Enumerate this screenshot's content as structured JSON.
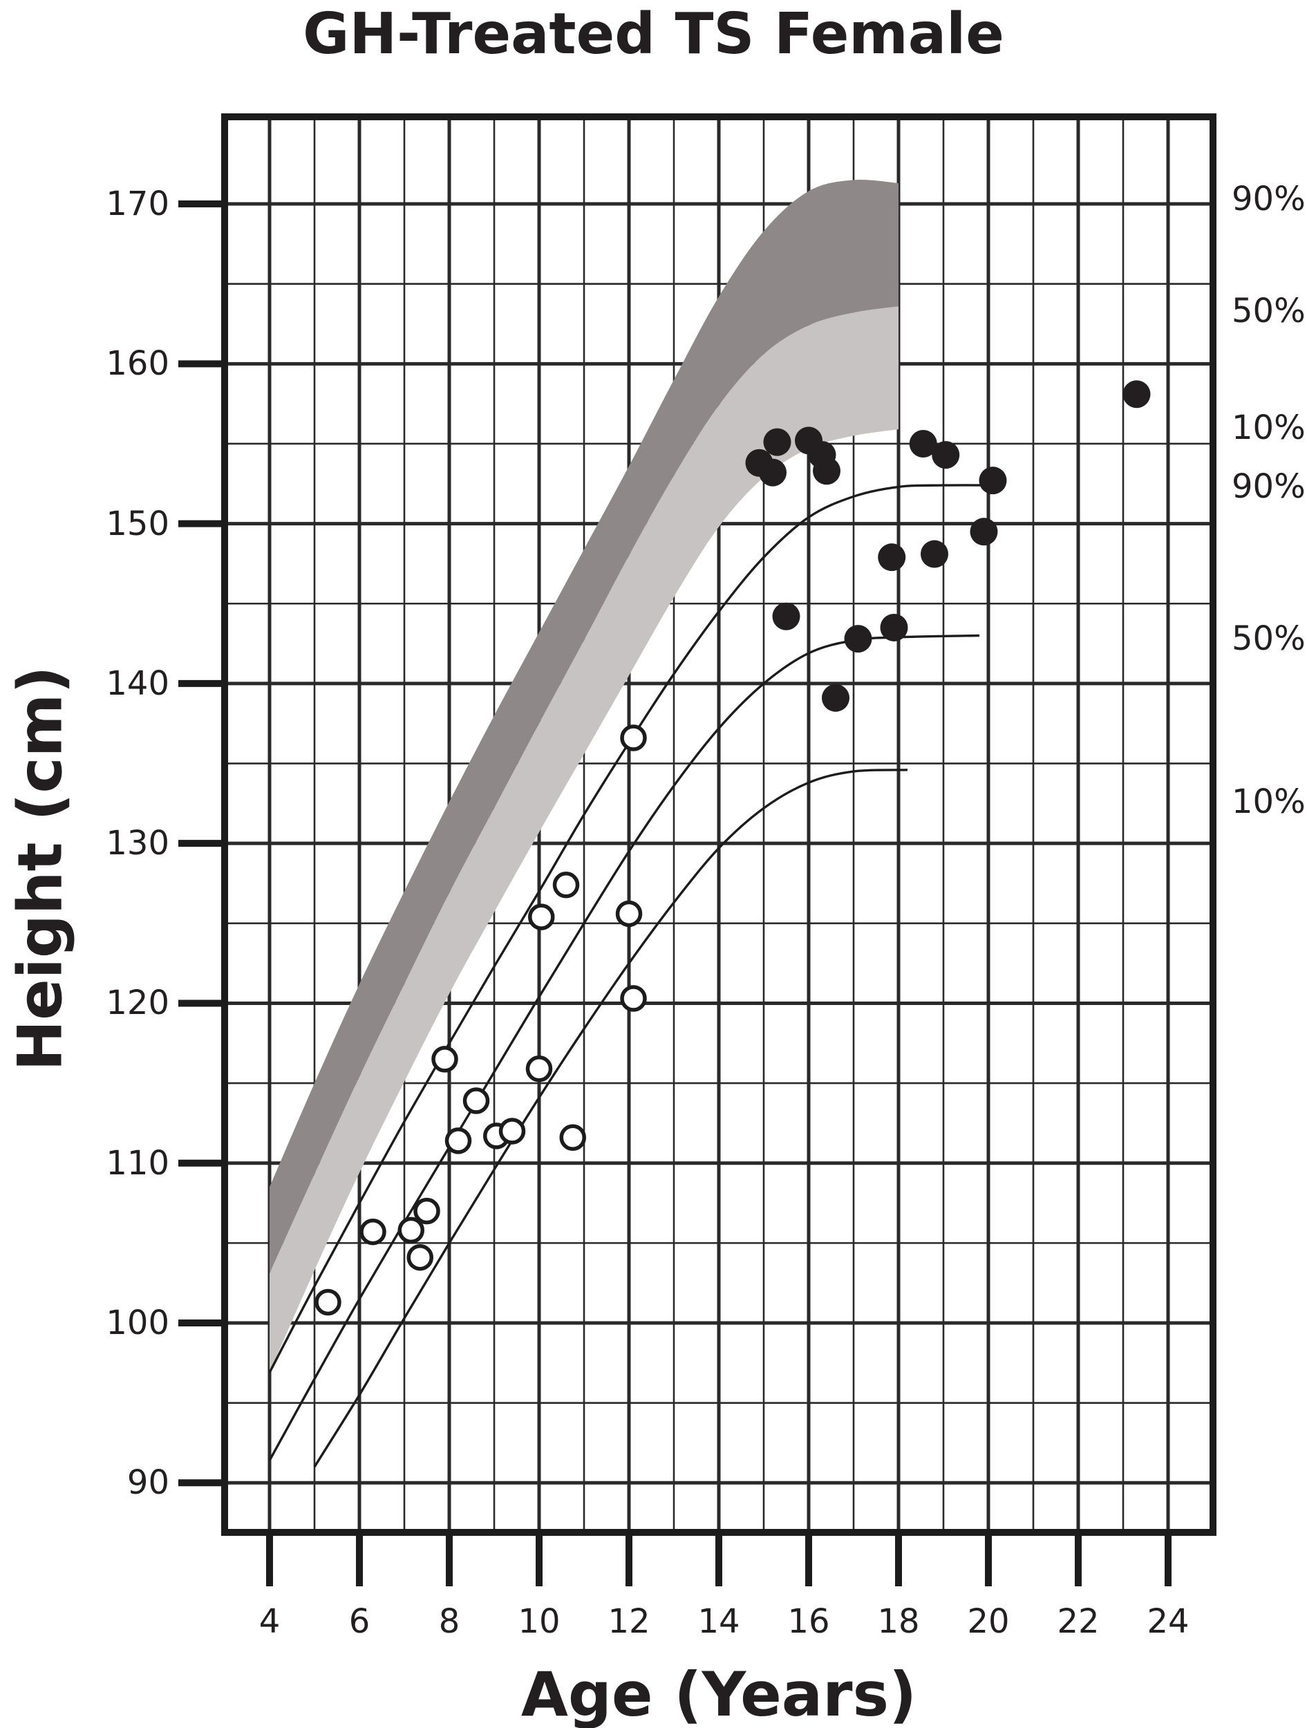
{
  "title": "GH-Treated TS Female",
  "colors": {
    "ink": "#231f20",
    "grid_major": "#1c1c1c",
    "grid_minor": "#2a2a2a",
    "band_dark": "#8f8888",
    "band_light": "#c7c3c3",
    "marker_fill": "#231f20",
    "open_marker_fill": "#ffffff"
  },
  "chart_data": {
    "type": "scatter",
    "title": "GH-Treated TS Female",
    "xlabel": "Age (Years)",
    "ylabel": "Height (cm)",
    "xlim": [
      3,
      25
    ],
    "ylim": [
      86.9,
      175.45
    ],
    "x_ticks": [
      4,
      6,
      8,
      10,
      12,
      14,
      16,
      18,
      20,
      22,
      24
    ],
    "y_ticks": [
      90,
      100,
      110,
      120,
      130,
      140,
      150,
      160,
      170
    ],
    "grid": {
      "x_minor_step_years": 1,
      "y_minor_step_cm": 5,
      "grid_on": true
    },
    "normal_female_band": {
      "age_range": [
        4,
        18
      ],
      "p90_upper_edge": [
        [
          4,
          108.5
        ],
        [
          5,
          115.0
        ],
        [
          6,
          121.2
        ],
        [
          7,
          127.0
        ],
        [
          8,
          132.6
        ],
        [
          9,
          138.0
        ],
        [
          10,
          143.2
        ],
        [
          11,
          148.4
        ],
        [
          12,
          153.6
        ],
        [
          13,
          159.0
        ],
        [
          14,
          164.2
        ],
        [
          15,
          168.3
        ],
        [
          16,
          170.8
        ],
        [
          17,
          171.5
        ],
        [
          18,
          171.3
        ]
      ],
      "p50_boundary": [
        [
          4,
          103.1
        ],
        [
          5,
          109.3
        ],
        [
          6,
          115.4
        ],
        [
          7,
          121.2
        ],
        [
          8,
          126.9
        ],
        [
          9,
          132.2
        ],
        [
          10,
          137.5
        ],
        [
          11,
          142.7
        ],
        [
          12,
          148.0
        ],
        [
          13,
          153.0
        ],
        [
          14,
          157.4
        ],
        [
          15,
          160.6
        ],
        [
          16,
          162.4
        ],
        [
          17,
          163.2
        ],
        [
          18,
          163.6
        ]
      ],
      "p10_lower_edge": [
        [
          4,
          96.9
        ],
        [
          5,
          103.3
        ],
        [
          6,
          109.4
        ],
        [
          7,
          115.1
        ],
        [
          8,
          120.6
        ],
        [
          9,
          125.7
        ],
        [
          10,
          130.7
        ],
        [
          11,
          135.6
        ],
        [
          12,
          140.5
        ],
        [
          13,
          145.4
        ],
        [
          14,
          149.8
        ],
        [
          15,
          152.9
        ],
        [
          16,
          154.7
        ],
        [
          17,
          155.5
        ],
        [
          18,
          155.9
        ]
      ]
    },
    "ts_percentile_curves": {
      "p90": [
        [
          4,
          96.9
        ],
        [
          5,
          102.3
        ],
        [
          6,
          107.5
        ],
        [
          7,
          112.6
        ],
        [
          8,
          117.5
        ],
        [
          9,
          122.3
        ],
        [
          10,
          127.0
        ],
        [
          11,
          131.8
        ],
        [
          12,
          136.3
        ],
        [
          13,
          140.6
        ],
        [
          14,
          144.5
        ],
        [
          15,
          147.9
        ],
        [
          16,
          150.4
        ],
        [
          17,
          151.7
        ],
        [
          18,
          152.3
        ],
        [
          19,
          152.4
        ],
        [
          20.2,
          152.4
        ]
      ],
      "p50": [
        [
          4,
          91.4
        ],
        [
          5,
          96.5
        ],
        [
          6,
          101.5
        ],
        [
          7,
          106.3
        ],
        [
          8,
          111.0
        ],
        [
          9,
          115.7
        ],
        [
          10,
          120.4
        ],
        [
          11,
          125.0
        ],
        [
          12,
          129.5
        ],
        [
          13,
          133.6
        ],
        [
          14,
          137.2
        ],
        [
          15,
          140.0
        ],
        [
          16,
          141.9
        ],
        [
          17,
          142.7
        ],
        [
          18,
          142.9
        ],
        [
          19.8,
          143.0
        ]
      ],
      "p10": [
        [
          5,
          91.0
        ],
        [
          6,
          95.5
        ],
        [
          7,
          100.3
        ],
        [
          8,
          105.0
        ],
        [
          9,
          109.6
        ],
        [
          10,
          114.1
        ],
        [
          11,
          118.4
        ],
        [
          12,
          122.5
        ],
        [
          13,
          126.3
        ],
        [
          14,
          129.7
        ],
        [
          15,
          132.2
        ],
        [
          16,
          133.8
        ],
        [
          17,
          134.5
        ],
        [
          18.2,
          134.6
        ]
      ]
    },
    "right_labels": [
      {
        "text": "90%",
        "at_height_cm": 170.3
      },
      {
        "text": "50%",
        "at_height_cm": 163.3
      },
      {
        "text": "10%",
        "at_height_cm": 156.0
      },
      {
        "text": "90%",
        "at_height_cm": 152.3
      },
      {
        "text": "50%",
        "at_height_cm": 142.8
      },
      {
        "text": "10%",
        "at_height_cm": 132.6
      }
    ],
    "series": [
      {
        "name": "open_circle_points",
        "marker": "open-circle",
        "points": [
          [
            5.3,
            101.3
          ],
          [
            6.3,
            105.7
          ],
          [
            7.15,
            105.8
          ],
          [
            7.5,
            107.0
          ],
          [
            7.35,
            104.1
          ],
          [
            7.9,
            116.5
          ],
          [
            8.2,
            111.4
          ],
          [
            8.6,
            113.9
          ],
          [
            9.05,
            111.7
          ],
          [
            9.4,
            112.0
          ],
          [
            10.0,
            115.9
          ],
          [
            10.75,
            111.6
          ],
          [
            10.05,
            125.4
          ],
          [
            10.6,
            127.4
          ],
          [
            12.0,
            125.6
          ],
          [
            12.1,
            120.3
          ],
          [
            12.1,
            136.6
          ]
        ]
      },
      {
        "name": "filled_circle_points",
        "marker": "filled-circle",
        "points": [
          [
            14.9,
            153.8
          ],
          [
            15.2,
            153.2
          ],
          [
            15.3,
            155.1
          ],
          [
            16.0,
            155.2
          ],
          [
            16.3,
            154.3
          ],
          [
            16.4,
            153.3
          ],
          [
            15.5,
            144.2
          ],
          [
            16.6,
            139.1
          ],
          [
            17.1,
            142.8
          ],
          [
            17.9,
            143.5
          ],
          [
            17.85,
            147.9
          ],
          [
            18.8,
            148.1
          ],
          [
            19.9,
            149.5
          ],
          [
            18.55,
            155.0
          ],
          [
            19.05,
            154.3
          ],
          [
            20.1,
            152.7
          ],
          [
            23.3,
            158.1
          ]
        ]
      }
    ]
  }
}
